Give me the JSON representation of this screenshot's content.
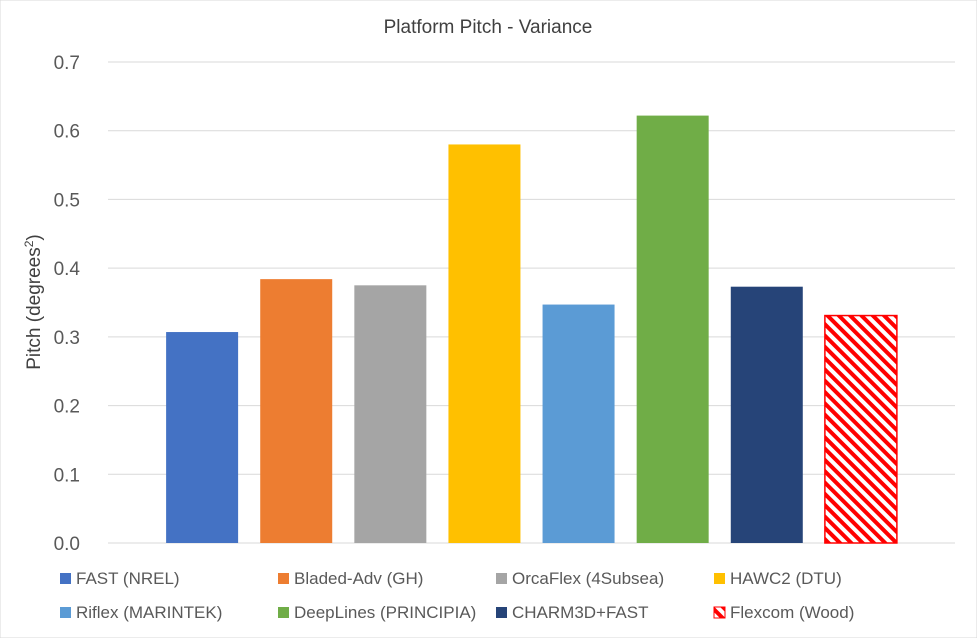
{
  "chart_data": {
    "type": "bar",
    "title": "Platform Pitch - Variance",
    "ylabel": "Pitch (degrees",
    "ylabel_superscript": "2",
    "ylabel_close": ")",
    "ylim": [
      0,
      0.7
    ],
    "yticks": [
      "0.0",
      "0.1",
      "0.2",
      "0.3",
      "0.4",
      "0.5",
      "0.6",
      "0.7"
    ],
    "grid": true,
    "legend_position": "bottom",
    "series": [
      {
        "name": "FAST (NREL)",
        "value": 0.307,
        "color": "#4472C4",
        "pattern": "solid"
      },
      {
        "name": "Bladed-Adv (GH)",
        "value": 0.384,
        "color": "#ED7D31",
        "pattern": "solid"
      },
      {
        "name": "OrcaFlex (4Subsea)",
        "value": 0.375,
        "color": "#A5A5A5",
        "pattern": "solid"
      },
      {
        "name": "HAWC2 (DTU)",
        "value": 0.58,
        "color": "#FFC000",
        "pattern": "solid"
      },
      {
        "name": "Riflex (MARINTEK)",
        "value": 0.347,
        "color": "#5B9BD5",
        "pattern": "solid"
      },
      {
        "name": "DeepLines (PRINCIPIA)",
        "value": 0.622,
        "color": "#70AD47",
        "pattern": "solid"
      },
      {
        "name": "CHARM3D+FAST",
        "value": 0.373,
        "color": "#264478",
        "pattern": "solid"
      },
      {
        "name": "Flexcom (Wood)",
        "value": 0.331,
        "color": "#FF0000",
        "pattern": "hatched"
      }
    ]
  }
}
